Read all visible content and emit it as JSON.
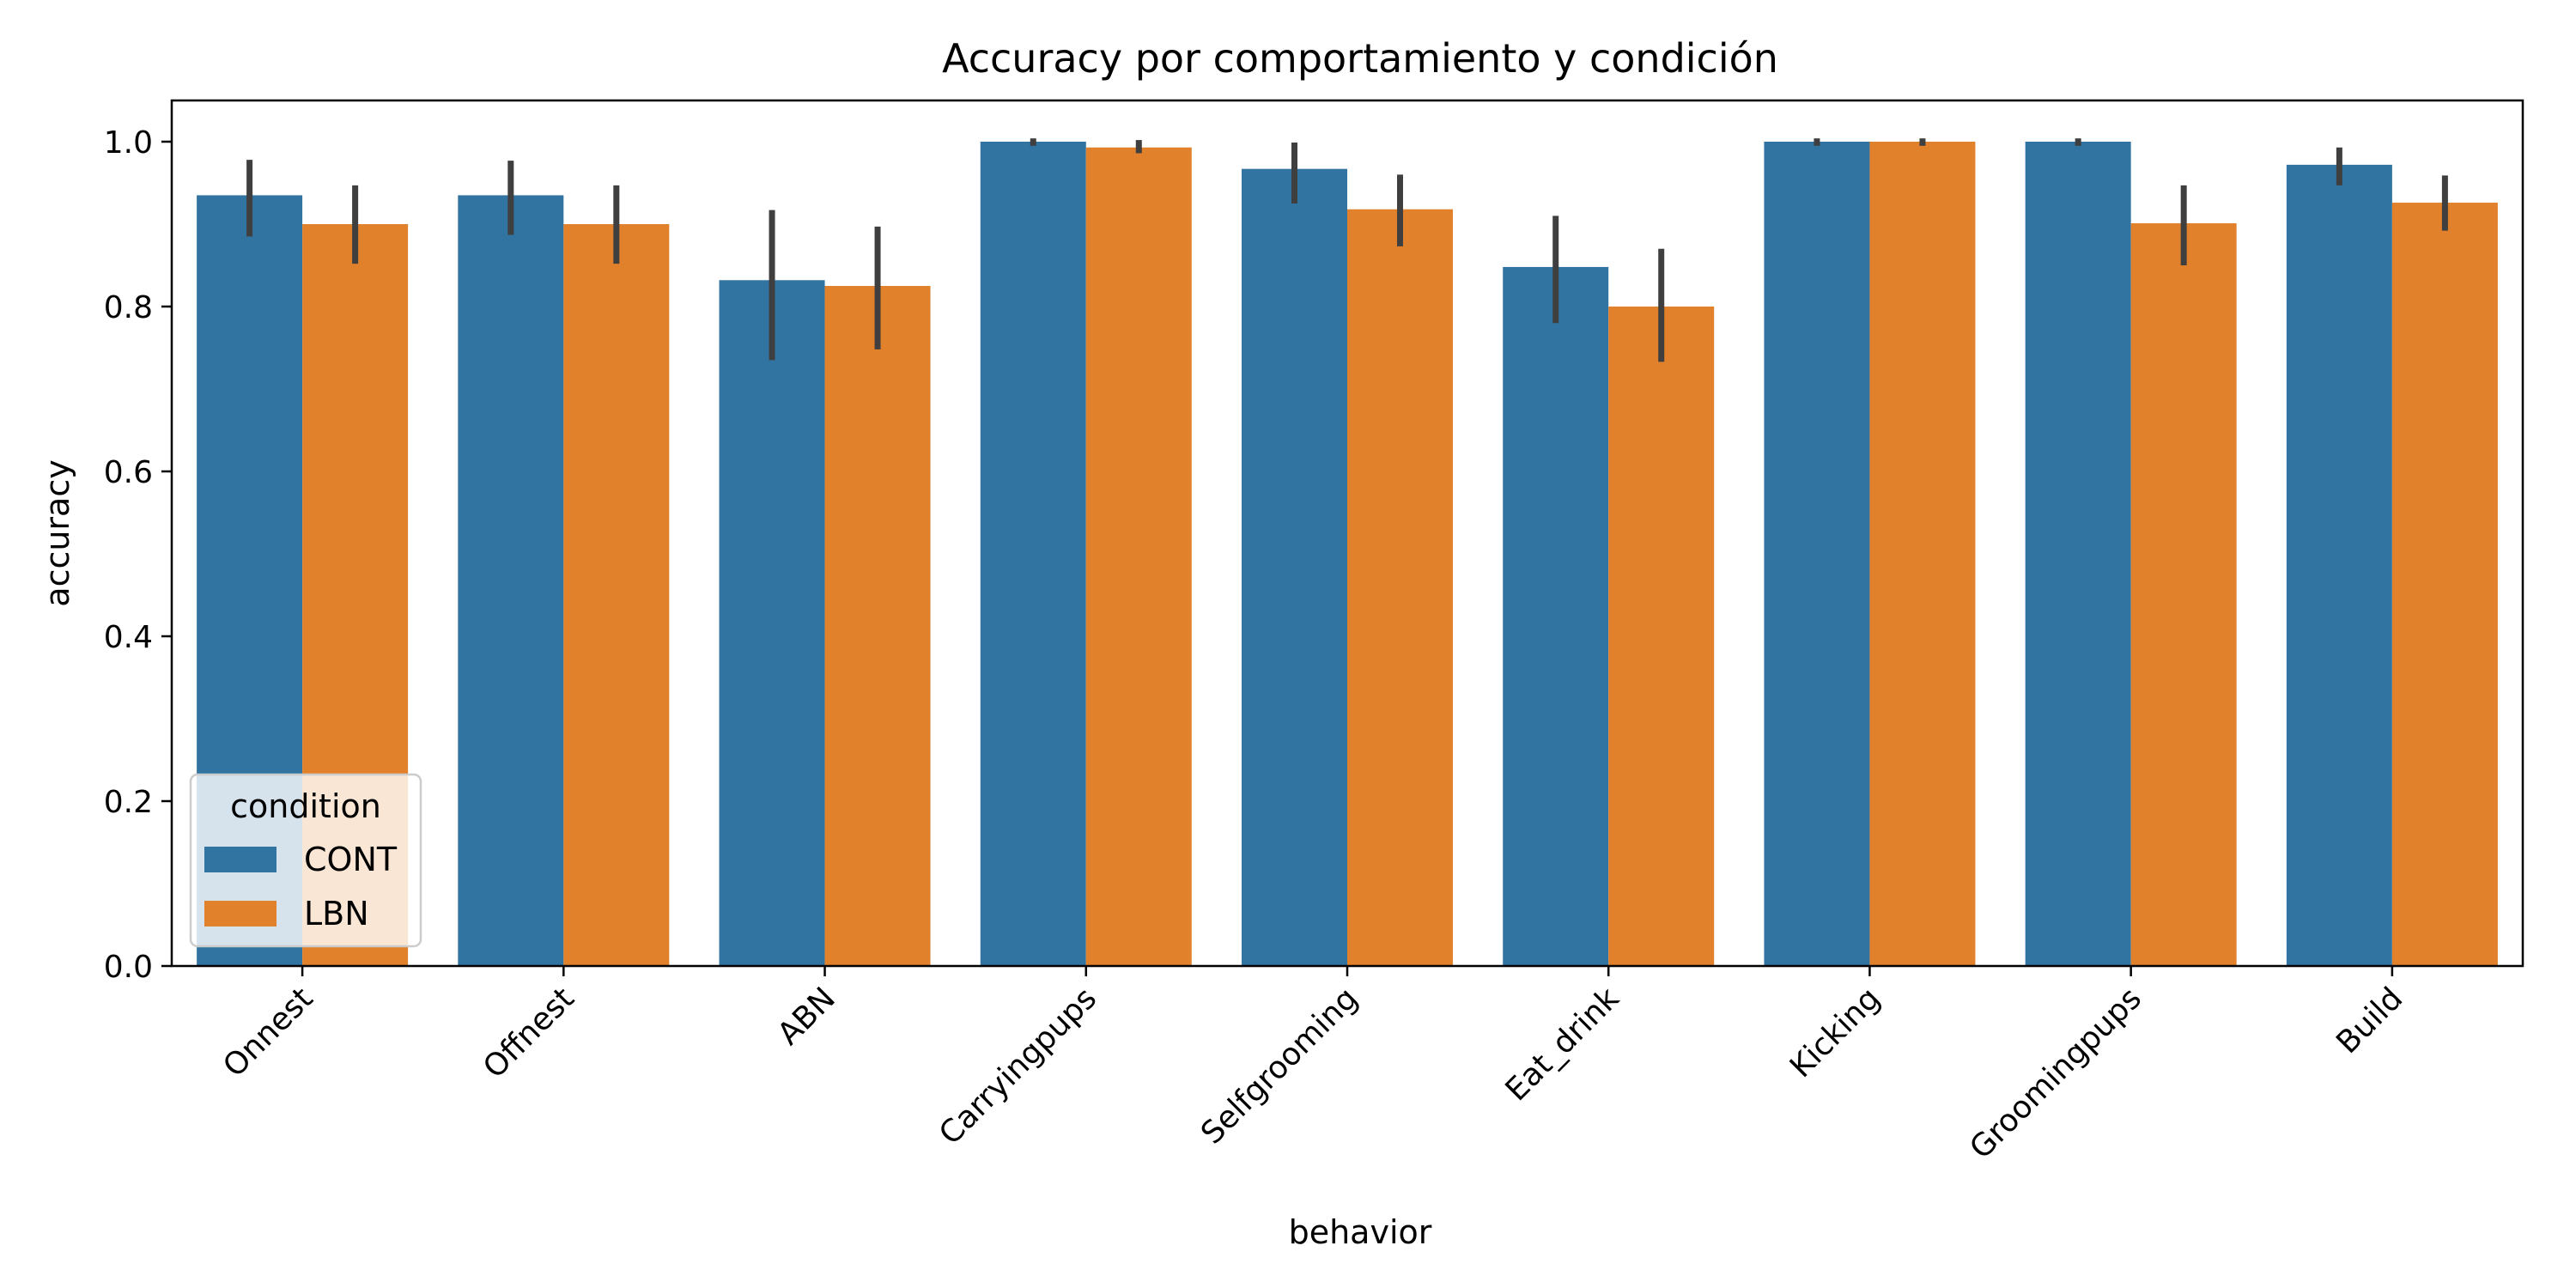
{
  "chart_data": {
    "type": "bar",
    "title": "Accuracy por comportamiento y condición",
    "xlabel": "behavior",
    "ylabel": "accuracy",
    "ylim": [
      0,
      1.05
    ],
    "yticks": [
      "0.0",
      "0.2",
      "0.4",
      "0.6",
      "0.8",
      "1.0"
    ],
    "categories": [
      "Onnest",
      "Offnest",
      "ABN",
      "Carryingpups",
      "Selfgrooming",
      "Eat_drink",
      "Kicking",
      "Groomingpups",
      "Build"
    ],
    "legend": {
      "title": "condition",
      "position": "lower-left"
    },
    "series": [
      {
        "name": "CONT",
        "color": "#3274a1",
        "values": [
          0.935,
          0.935,
          0.832,
          1.0,
          0.967,
          0.848,
          1.0,
          1.0,
          0.972
        ],
        "err_low": [
          0.885,
          0.887,
          0.735,
          0.995,
          0.925,
          0.78,
          0.995,
          0.995,
          0.947
        ],
        "err_high": [
          0.978,
          0.977,
          0.917,
          1.004,
          0.999,
          0.91,
          1.004,
          1.004,
          0.993
        ]
      },
      {
        "name": "LBN",
        "color": "#e1812c",
        "values": [
          0.9,
          0.9,
          0.825,
          0.993,
          0.918,
          0.8,
          1.0,
          0.901,
          0.926
        ],
        "err_low": [
          0.852,
          0.852,
          0.748,
          0.986,
          0.873,
          0.733,
          0.995,
          0.85,
          0.892
        ],
        "err_high": [
          0.947,
          0.947,
          0.897,
          1.002,
          0.96,
          0.87,
          1.004,
          0.947,
          0.959
        ]
      }
    ],
    "error_bar_color": "#3f3f3f"
  }
}
